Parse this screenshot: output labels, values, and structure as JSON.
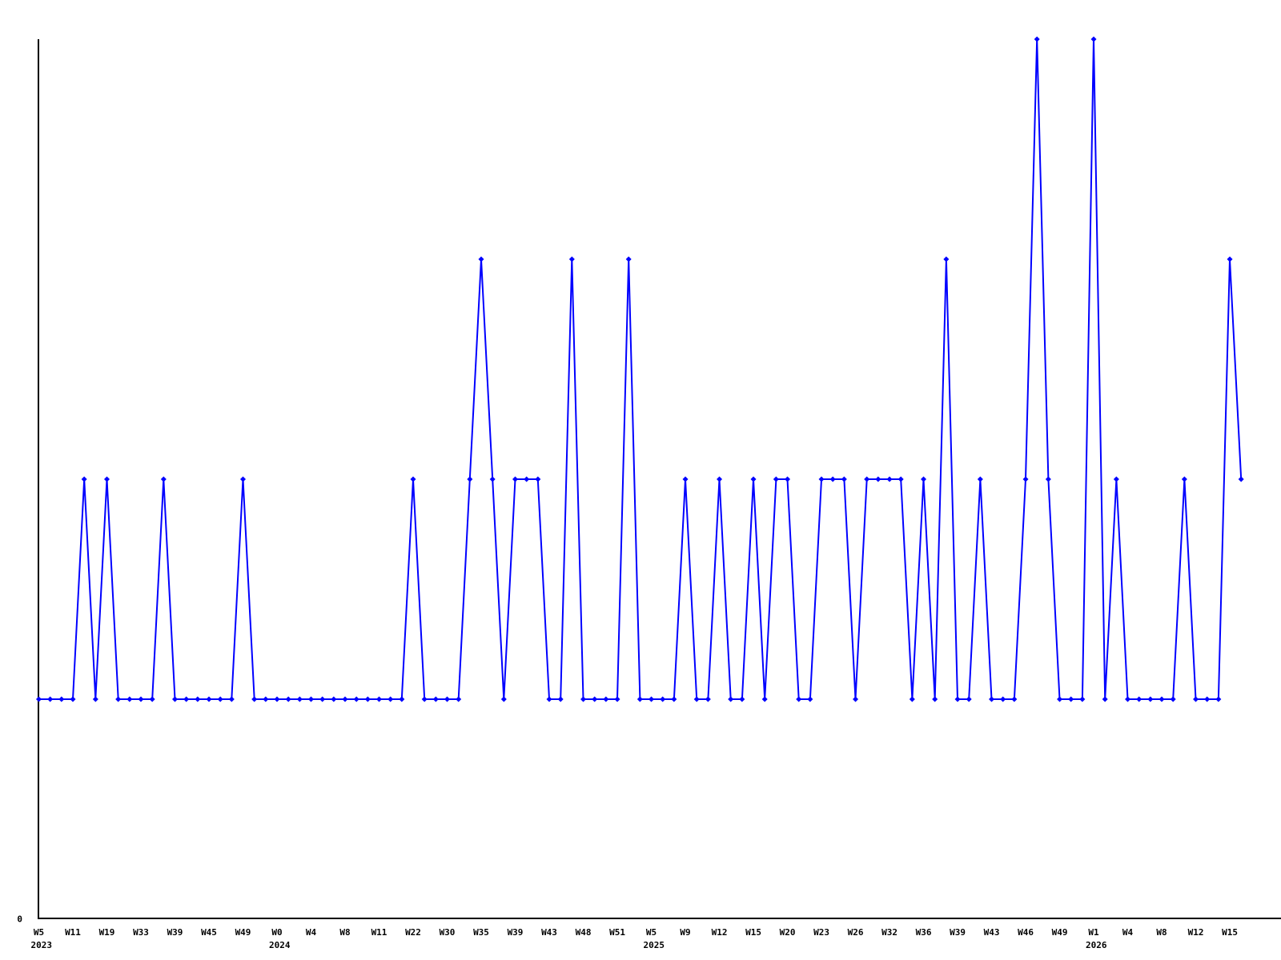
{
  "chart_data": {
    "type": "line",
    "title": "",
    "background": "#ffffff",
    "line_color": "#0000ff",
    "marker_color": "#0000ff",
    "axis_color": "#000000",
    "label_color": "#000000",
    "grid": false,
    "legend": "none",
    "y_axis": {
      "tick_labels": [
        "0"
      ],
      "ylim": [
        0,
        4
      ]
    },
    "x_axis": {
      "tick_every": 3,
      "ticks": [
        {
          "week": "W5",
          "year": "2023"
        },
        {
          "week": "W11"
        },
        {
          "week": "W19"
        },
        {
          "week": "W33"
        },
        {
          "week": "W39"
        },
        {
          "week": "W45"
        },
        {
          "week": "W49"
        },
        {
          "week": "W0",
          "year": "2024"
        },
        {
          "week": "W4"
        },
        {
          "week": "W8"
        },
        {
          "week": "W11"
        },
        {
          "week": "W22"
        },
        {
          "week": "W30"
        },
        {
          "week": "W35"
        },
        {
          "week": "W39"
        },
        {
          "week": "W43"
        },
        {
          "week": "W48"
        },
        {
          "week": "W51"
        },
        {
          "week": "W5",
          "year": "2025"
        },
        {
          "week": "W9"
        },
        {
          "week": "W12"
        },
        {
          "week": "W15"
        },
        {
          "week": "W20"
        },
        {
          "week": "W23"
        },
        {
          "week": "W26"
        },
        {
          "week": "W32"
        },
        {
          "week": "W36"
        },
        {
          "week": "W39"
        },
        {
          "week": "W43"
        },
        {
          "week": "W46"
        },
        {
          "week": "W49"
        },
        {
          "week": "W1",
          "year": "2026"
        },
        {
          "week": "W4"
        },
        {
          "week": "W8"
        },
        {
          "week": "W12"
        },
        {
          "week": "W15"
        }
      ]
    },
    "values": [
      1,
      1,
      1,
      1,
      2,
      1,
      2,
      1,
      1,
      1,
      1,
      2,
      1,
      1,
      1,
      1,
      1,
      1,
      2,
      1,
      1,
      1,
      1,
      1,
      1,
      1,
      1,
      1,
      1,
      1,
      1,
      1,
      1,
      2,
      1,
      1,
      1,
      1,
      2,
      3,
      2,
      1,
      2,
      2,
      2,
      1,
      1,
      3,
      1,
      1,
      1,
      1,
      3,
      1,
      1,
      1,
      1,
      2,
      1,
      1,
      2,
      1,
      1,
      2,
      1,
      2,
      2,
      1,
      1,
      2,
      2,
      2,
      1,
      2,
      2,
      2,
      2,
      1,
      2,
      1,
      3,
      1,
      1,
      2,
      1,
      1,
      1,
      2,
      4,
      2,
      1,
      1,
      1,
      4,
      1,
      2,
      1,
      1,
      1,
      1,
      1,
      2,
      1,
      1,
      1,
      3,
      2
    ]
  }
}
